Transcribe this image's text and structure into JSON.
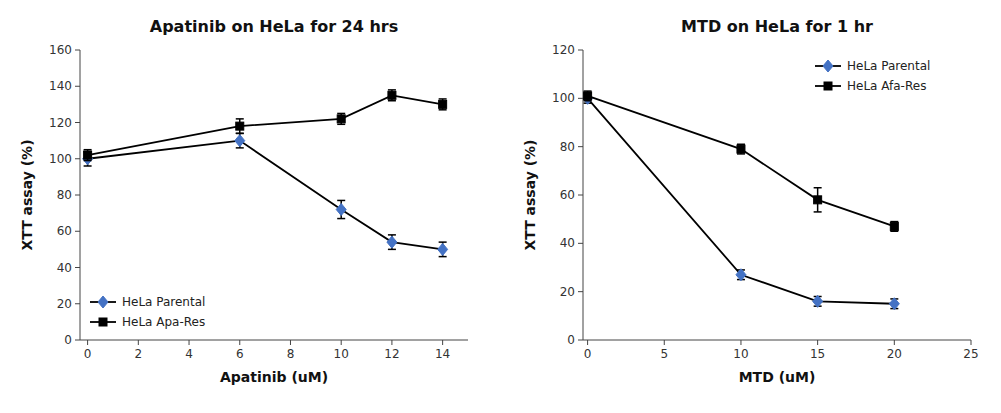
{
  "chart_data": [
    {
      "type": "line",
      "title": "Apatinib on HeLa for 24 hrs",
      "x_label": "Apatinib (uM)",
      "y_label": "XTT assay (%)",
      "x": [
        0,
        6,
        10,
        12,
        14
      ],
      "color": "#000000",
      "series": [
        {
          "name": "HeLa Parental",
          "color": "#4472c4",
          "marker": "diamond",
          "values": [
            100,
            110,
            72,
            54,
            50
          ],
          "errors": [
            4,
            4,
            5,
            4,
            4
          ]
        },
        {
          "name": "HeLa Apa-Res",
          "color": "#000000",
          "marker": "square",
          "values": [
            102,
            118,
            122,
            135,
            130
          ],
          "errors": [
            3,
            4,
            3,
            3,
            3
          ]
        }
      ],
      "xlim": [
        -0.3,
        15
      ],
      "ylim": [
        0,
        160
      ],
      "xticks": [
        0,
        2,
        4,
        6,
        8,
        10,
        12,
        14
      ],
      "yticks": [
        0,
        20,
        40,
        60,
        80,
        100,
        120,
        140,
        160
      ],
      "grid": false,
      "legend": "lower left"
    },
    {
      "type": "line",
      "title": "MTD on HeLa for 1 hr",
      "x_label": "MTD (uM)",
      "y_label": "XTT assay (%)",
      "x": [
        0,
        10,
        15,
        20
      ],
      "color": "#000000",
      "series": [
        {
          "name": "HeLa Parental",
          "color": "#4472c4",
          "marker": "diamond",
          "values": [
            100,
            27,
            16,
            15
          ],
          "errors": [
            2,
            2,
            2,
            2
          ]
        },
        {
          "name": "HeLa Afa-Res",
          "color": "#000000",
          "marker": "square",
          "values": [
            101,
            79,
            58,
            47
          ],
          "errors": [
            2,
            2,
            5,
            2
          ]
        }
      ],
      "xlim": [
        -0.3,
        25
      ],
      "ylim": [
        0,
        120
      ],
      "xticks": [
        0,
        5,
        10,
        15,
        20,
        25
      ],
      "yticks": [
        0,
        20,
        40,
        60,
        80,
        100,
        120
      ],
      "grid": false,
      "legend": "upper right"
    }
  ]
}
